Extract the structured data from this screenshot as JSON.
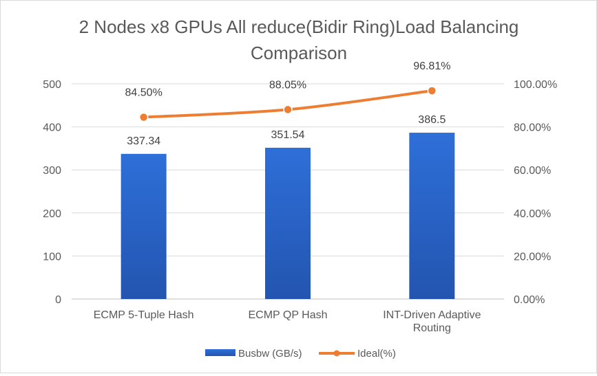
{
  "chart_data": {
    "type": "bar",
    "title": "2 Nodes x8 GPUs All reduce(Bidir Ring)Load Balancing Comparison",
    "title_lines": [
      "2 Nodes x8 GPUs All reduce(Bidir Ring)Load Balancing",
      "Comparison"
    ],
    "categories": [
      [
        "ECMP 5-Tuple Hash"
      ],
      [
        "ECMP QP Hash"
      ],
      [
        "INT-Driven Adaptive",
        "Routing"
      ]
    ],
    "series": [
      {
        "name": "Busbw (GB/s)",
        "kind": "bar",
        "axis": "left",
        "color": "#2e6fd8",
        "values": [
          337.34,
          351.54,
          386.5
        ],
        "labels": [
          "337.34",
          "351.54",
          "386.5"
        ]
      },
      {
        "name": "Ideal(%)",
        "kind": "line",
        "axis": "right",
        "color": "#ed7d31",
        "values": [
          84.5,
          88.05,
          96.81
        ],
        "labels": [
          "84.50%",
          "88.05%",
          "96.81%"
        ]
      }
    ],
    "y_left": {
      "lim": [
        0,
        500
      ],
      "ticks": [
        0,
        100,
        200,
        300,
        400,
        500
      ],
      "tick_labels": [
        "0",
        "100",
        "200",
        "300",
        "400",
        "500"
      ]
    },
    "y_right": {
      "lim": [
        0,
        100
      ],
      "ticks": [
        0,
        20,
        40,
        60,
        80,
        100
      ],
      "tick_labels": [
        "0.00%",
        "20.00%",
        "40.00%",
        "60.00%",
        "80.00%",
        "100.00%"
      ]
    },
    "grid": true,
    "legend_position": "bottom"
  }
}
